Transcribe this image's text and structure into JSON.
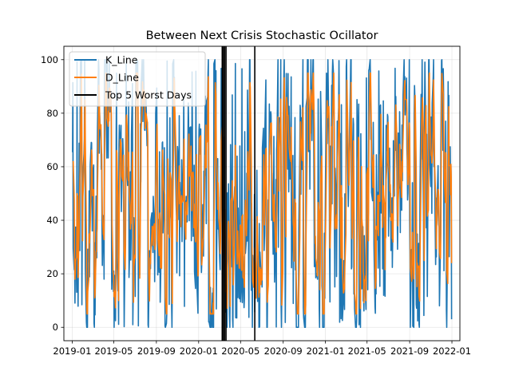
{
  "chart_data": {
    "type": "line",
    "title": "Between Next Crisis Stochastic Ocillator",
    "xlabel": "",
    "ylabel": "",
    "x_range": [
      "2018-12-08",
      "2022-01-24"
    ],
    "ylim": [
      -5,
      105
    ],
    "x_ticks": [
      "2019-01",
      "2019-05",
      "2019-09",
      "2020-01",
      "2020-05",
      "2020-09",
      "2021-01",
      "2021-05",
      "2021-09",
      "2022-01"
    ],
    "y_ticks": [
      0,
      20,
      40,
      60,
      80,
      100
    ],
    "grid": true,
    "legend_position": "top-left",
    "series": [
      {
        "name": "K_Line",
        "color": "#1f77b4",
        "start": "2019-01-02",
        "end": "2021-12-31",
        "range": [
          0,
          100
        ],
        "first_value": 62,
        "last_value": 3
      },
      {
        "name": "D_Line",
        "color": "#ff7f0e",
        "start": "2019-01-04",
        "end": "2021-12-31",
        "range": [
          5,
          95
        ],
        "first_value": 53,
        "last_value": 24
      }
    ],
    "vlines": {
      "name": "Top 5 Worst Days",
      "color": "#000000",
      "dates": [
        "2020-03-09",
        "2020-03-12",
        "2020-03-16",
        "2020-03-20",
        "2020-06-11"
      ]
    }
  }
}
